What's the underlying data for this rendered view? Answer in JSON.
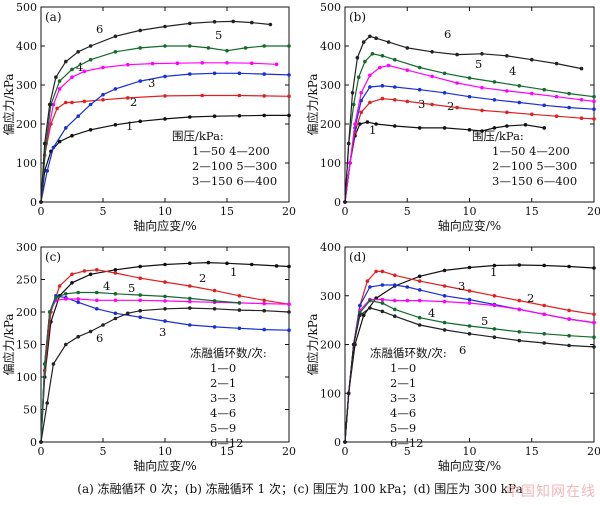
{
  "caption": "(a) 冻融循环 0 次；(b) 冻融循环 1 次；(c) 围压为 100 kPa；(d) 围压为 300 kPa",
  "watermark": "中国知网在线",
  "chart_data": [
    {
      "type": "line",
      "panel": "(a)",
      "xlabel": "轴向应变/%",
      "ylabel": "偏应力/kPa",
      "xlim": [
        0,
        20
      ],
      "ylim": [
        0,
        500
      ],
      "xticks": [
        0,
        5,
        10,
        15,
        20
      ],
      "yticks": [
        0,
        100,
        200,
        300,
        400,
        500
      ],
      "legend_title": "围压/kPa:",
      "legend_lines": [
        "1—50    4—200",
        "2—100  5—300",
        "3—150  6—400"
      ],
      "series": [
        {
          "name": "1",
          "color": "#111111",
          "x": [
            0,
            0.3,
            0.8,
            1.5,
            2.5,
            4,
            6,
            8,
            10,
            12,
            14,
            16,
            18,
            20
          ],
          "y": [
            0,
            80,
            130,
            155,
            170,
            185,
            198,
            207,
            213,
            218,
            220,
            221,
            222,
            222
          ]
        },
        {
          "name": "2",
          "color": "#e02020",
          "x": [
            0,
            0.3,
            0.8,
            1.3,
            2,
            2.5,
            3.5,
            5,
            7,
            10,
            13,
            16,
            18,
            20
          ],
          "y": [
            0,
            120,
            200,
            240,
            255,
            255,
            258,
            262,
            267,
            272,
            273,
            273,
            272,
            271
          ]
        },
        {
          "name": "3",
          "color": "#1a2fd8",
          "x": [
            0,
            0.5,
            1,
            2,
            3,
            4,
            5,
            6,
            8,
            10,
            12,
            14,
            16,
            18,
            20
          ],
          "y": [
            0,
            80,
            140,
            190,
            220,
            250,
            275,
            290,
            310,
            322,
            328,
            330,
            330,
            328,
            326
          ]
        },
        {
          "name": "4",
          "color": "#ff00ff",
          "x": [
            0,
            0.4,
            1,
            1.5,
            2.5,
            3.5,
            5,
            7,
            9,
            11,
            13,
            15,
            17,
            19
          ],
          "y": [
            0,
            150,
            250,
            290,
            320,
            335,
            345,
            352,
            355,
            356,
            357,
            357,
            356,
            353
          ]
        },
        {
          "name": "5",
          "color": "#126b2a",
          "x": [
            0,
            0.4,
            0.8,
            1.5,
            2.5,
            4,
            6,
            8,
            10,
            12,
            13.5,
            15,
            16.5,
            18,
            20
          ],
          "y": [
            0,
            150,
            250,
            310,
            340,
            365,
            385,
            395,
            400,
            400,
            395,
            388,
            395,
            400,
            400
          ]
        },
        {
          "name": "6",
          "color": "#222222",
          "x": [
            0,
            0.3,
            0.7,
            1.2,
            2,
            3,
            4,
            6,
            8,
            10,
            12,
            14,
            15.5,
            17,
            18.5
          ],
          "y": [
            0,
            150,
            250,
            320,
            360,
            385,
            400,
            425,
            440,
            450,
            458,
            462,
            463,
            460,
            455
          ]
        }
      ]
    },
    {
      "type": "line",
      "panel": "(b)",
      "xlabel": "轴向应变/%",
      "ylabel": "偏应力/kPa",
      "xlim": [
        0,
        20
      ],
      "ylim": [
        0,
        500
      ],
      "xticks": [
        0,
        5,
        10,
        15,
        20
      ],
      "yticks": [
        0,
        100,
        200,
        300,
        400,
        500
      ],
      "legend_title": "围压/kPa:",
      "legend_lines": [
        "1—50    4—200",
        "2—100  5—300",
        "3—150  6—400"
      ],
      "series": [
        {
          "name": "1",
          "color": "#111111",
          "x": [
            0,
            0.4,
            0.8,
            1.2,
            1.8,
            2.5,
            4,
            6,
            8,
            10,
            11,
            12,
            13,
            14.5,
            16
          ],
          "y": [
            0,
            100,
            170,
            200,
            205,
            200,
            195,
            190,
            190,
            185,
            182,
            190,
            195,
            198,
            190
          ]
        },
        {
          "name": "2",
          "color": "#e02020",
          "x": [
            0,
            0.4,
            0.8,
            1.3,
            2,
            3,
            4,
            5,
            7,
            9,
            11,
            13,
            15,
            17,
            19,
            20
          ],
          "y": [
            0,
            100,
            180,
            230,
            255,
            265,
            262,
            258,
            250,
            242,
            235,
            230,
            225,
            220,
            215,
            213
          ]
        },
        {
          "name": "3",
          "color": "#1a2fd8",
          "x": [
            0,
            0.4,
            0.8,
            1.3,
            2,
            3,
            4,
            6,
            8,
            10,
            12,
            14,
            16,
            18,
            20
          ],
          "y": [
            0,
            100,
            190,
            260,
            295,
            298,
            295,
            288,
            280,
            270,
            262,
            255,
            248,
            242,
            238
          ]
        },
        {
          "name": "4",
          "color": "#ff00ff",
          "x": [
            0,
            0.4,
            0.8,
            1.3,
            2,
            2.8,
            3.5,
            5,
            7,
            9,
            11,
            13,
            15,
            17,
            19,
            20
          ],
          "y": [
            0,
            100,
            200,
            280,
            325,
            345,
            350,
            338,
            322,
            305,
            293,
            285,
            278,
            270,
            262,
            258
          ]
        },
        {
          "name": "5",
          "color": "#126b2a",
          "x": [
            0,
            0.3,
            0.7,
            1.1,
            1.6,
            2.2,
            3,
            4,
            6,
            8,
            10,
            12,
            14,
            16,
            18,
            20
          ],
          "y": [
            0,
            150,
            250,
            320,
            360,
            380,
            375,
            365,
            345,
            330,
            318,
            308,
            298,
            288,
            278,
            270
          ]
        },
        {
          "name": "6",
          "color": "#222222",
          "x": [
            0,
            0.3,
            0.6,
            1,
            1.5,
            2,
            2.5,
            3.5,
            5,
            7,
            9,
            11,
            13,
            15,
            17,
            19
          ],
          "y": [
            0,
            150,
            280,
            370,
            410,
            425,
            420,
            410,
            395,
            385,
            378,
            380,
            375,
            365,
            355,
            342
          ]
        }
      ]
    },
    {
      "type": "line",
      "panel": "(c)",
      "xlabel": "轴向应变/%",
      "ylabel": "偏应力/kPa",
      "xlim": [
        0,
        20
      ],
      "ylim": [
        0,
        300
      ],
      "xticks": [
        0,
        5,
        10,
        15,
        20
      ],
      "yticks": [
        0,
        50,
        100,
        150,
        200,
        250,
        300
      ],
      "legend_title": "冻融循环数/次:",
      "legend_lines": [
        "1—0",
        "2—1",
        "3—3",
        "4—6",
        "5—9",
        "6—12"
      ],
      "series": [
        {
          "name": "1",
          "color": "#111111",
          "x": [
            0,
            0.3,
            0.8,
            1.5,
            2.5,
            4,
            6,
            8,
            10,
            12,
            13.5,
            15,
            17,
            19,
            20
          ],
          "y": [
            0,
            100,
            185,
            225,
            245,
            258,
            265,
            270,
            273,
            275,
            276,
            275,
            273,
            271,
            270
          ]
        },
        {
          "name": "2",
          "color": "#e02020",
          "x": [
            0,
            0.3,
            0.8,
            1.5,
            2.5,
            3.5,
            4.5,
            6,
            8,
            10,
            12,
            14,
            16,
            18,
            20
          ],
          "y": [
            0,
            110,
            200,
            240,
            258,
            263,
            265,
            260,
            252,
            246,
            240,
            233,
            225,
            218,
            212
          ]
        },
        {
          "name": "3",
          "color": "#1a2fd8",
          "x": [
            0,
            0.3,
            0.7,
            1.2,
            2,
            3,
            4.5,
            6,
            8,
            10,
            12,
            14,
            16,
            18,
            20
          ],
          "y": [
            0,
            120,
            200,
            225,
            222,
            215,
            205,
            198,
            192,
            186,
            180,
            177,
            175,
            173,
            172
          ]
        },
        {
          "name": "4",
          "color": "#ff00ff",
          "x": [
            0,
            0.3,
            0.7,
            1.2,
            2,
            3,
            4.5,
            6,
            8,
            10,
            12,
            14,
            16,
            18,
            20
          ],
          "y": [
            0,
            120,
            200,
            218,
            220,
            220,
            218,
            218,
            218,
            217,
            216,
            215,
            214,
            213,
            212
          ]
        },
        {
          "name": "5",
          "color": "#126b2a",
          "x": [
            0,
            0.3,
            0.7,
            1.2,
            2,
            3,
            4.5,
            6,
            8,
            10,
            12,
            14,
            16
          ],
          "y": [
            0,
            120,
            200,
            222,
            228,
            230,
            230,
            228,
            226,
            224,
            221,
            217,
            214
          ]
        },
        {
          "name": "6",
          "color": "#222222",
          "x": [
            0,
            0.5,
            1,
            2,
            3,
            4,
            5,
            6,
            7,
            8,
            10,
            12,
            14,
            16,
            18,
            20
          ],
          "y": [
            0,
            60,
            120,
            150,
            162,
            170,
            180,
            190,
            198,
            202,
            205,
            206,
            205,
            203,
            202,
            200
          ]
        }
      ]
    },
    {
      "type": "line",
      "panel": "(d)",
      "xlabel": "轴向应变/%",
      "ylabel": "偏应力/kPa",
      "xlim": [
        0,
        20
      ],
      "ylim": [
        0,
        400
      ],
      "xticks": [
        0,
        5,
        10,
        15,
        20
      ],
      "yticks": [
        0,
        100,
        200,
        300,
        400
      ],
      "legend_title": "冻融循环数/次:",
      "legend_lines": [
        "1—0",
        "2—1",
        "3—3",
        "4—6",
        "5—9",
        "6—12"
      ],
      "series": [
        {
          "name": "1",
          "color": "#111111",
          "x": [
            0,
            0.3,
            0.8,
            1.5,
            2.5,
            4,
            6,
            8,
            10,
            12,
            14,
            16,
            18,
            20
          ],
          "y": [
            0,
            100,
            200,
            260,
            295,
            320,
            340,
            352,
            358,
            362,
            363,
            362,
            360,
            357
          ]
        },
        {
          "name": "2",
          "color": "#e02020",
          "x": [
            0,
            0.3,
            0.7,
            1.2,
            1.8,
            2.5,
            3,
            4,
            6,
            8,
            10,
            12,
            14,
            16,
            18,
            20
          ],
          "y": [
            0,
            100,
            200,
            280,
            330,
            350,
            350,
            342,
            330,
            320,
            310,
            300,
            290,
            280,
            270,
            262
          ]
        },
        {
          "name": "3",
          "color": "#1a2fd8",
          "x": [
            0,
            0.3,
            0.7,
            1.2,
            2,
            3,
            4,
            5,
            6,
            8,
            10,
            12,
            14,
            16,
            18,
            20
          ],
          "y": [
            0,
            100,
            200,
            280,
            318,
            322,
            322,
            318,
            312,
            300,
            292,
            282,
            272,
            262,
            252,
            245
          ]
        },
        {
          "name": "4",
          "color": "#ff00ff",
          "x": [
            0,
            0.3,
            0.7,
            1.2,
            2,
            3,
            4,
            5,
            6,
            8,
            10,
            12,
            14,
            16,
            18,
            20
          ],
          "y": [
            0,
            100,
            200,
            270,
            292,
            292,
            290,
            290,
            290,
            288,
            285,
            280,
            272,
            262,
            252,
            245
          ]
        },
        {
          "name": "5",
          "color": "#126b2a",
          "x": [
            0,
            0.3,
            0.7,
            1.2,
            2,
            3,
            4,
            6,
            8,
            10,
            12,
            14,
            16,
            18,
            20
          ],
          "y": [
            0,
            100,
            200,
            265,
            290,
            285,
            272,
            255,
            245,
            238,
            232,
            226,
            222,
            218,
            215
          ]
        },
        {
          "name": "6",
          "color": "#222222",
          "x": [
            0,
            0.3,
            0.7,
            1.2,
            2,
            3,
            4,
            6,
            8,
            10,
            12,
            14,
            16,
            18,
            20
          ],
          "y": [
            0,
            100,
            200,
            260,
            275,
            268,
            258,
            240,
            230,
            222,
            215,
            208,
            203,
            198,
            195
          ]
        }
      ]
    }
  ]
}
